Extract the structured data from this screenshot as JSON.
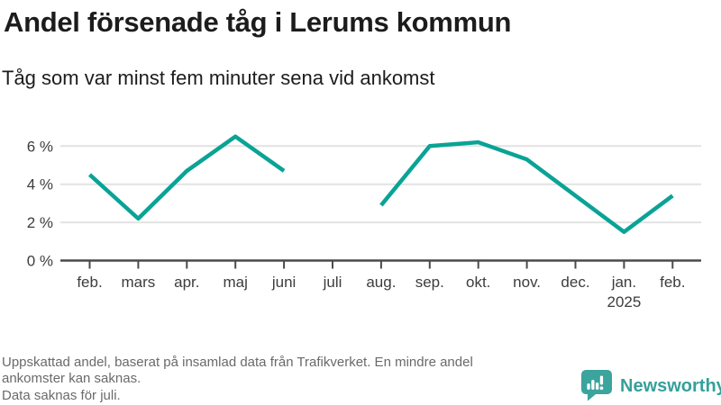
{
  "title": "Andel försenade tåg i Lerums kommun",
  "subtitle": "Tåg som var minst fem minuter sena vid ankomst",
  "chart_data": {
    "type": "line",
    "title": "Andel försenade tåg i Lerums kommun",
    "subtitle": "Tåg som var minst fem minuter sena vid ankomst",
    "categories": [
      "feb.",
      "mars",
      "apr.",
      "maj",
      "juni",
      "juli",
      "aug.",
      "sep.",
      "okt.",
      "nov.",
      "dec.",
      "jan.",
      "feb."
    ],
    "x_sub_labels": {
      "11": "2025"
    },
    "series": [
      {
        "name": "Andel försenade tåg",
        "values": [
          4.5,
          2.2,
          4.7,
          6.5,
          4.7,
          null,
          2.9,
          6.0,
          6.2,
          5.3,
          3.4,
          1.5,
          3.4
        ],
        "color": "#0aa396"
      }
    ],
    "unit": "%",
    "yticks": [
      0,
      2,
      4,
      6
    ],
    "ytick_labels": [
      "0 %",
      "2 %",
      "4 %",
      "6 %"
    ],
    "ylim": [
      0,
      8
    ],
    "grid": "horizontal-only",
    "legend": "none",
    "missing_data": "juli",
    "xlabel": "",
    "ylabel": ""
  },
  "footer": {
    "lines": [
      "Uppskattad andel, baserat på insamlad data från Trafikverket. En mindre andel",
      "ankomster kan saknas.",
      "Data saknas för juli."
    ]
  },
  "logo": {
    "text": "Newsworthy",
    "color": "#35a09a",
    "icon": "bar-chart-speech-bubble"
  },
  "colors": {
    "line": "#0aa396",
    "title_text": "#1c1c1c",
    "axis_text": "#3d3d3d",
    "gridline": "#e2e2e2",
    "axis_line": "#4a4a4a",
    "footer_text": "#6a6a6a"
  }
}
